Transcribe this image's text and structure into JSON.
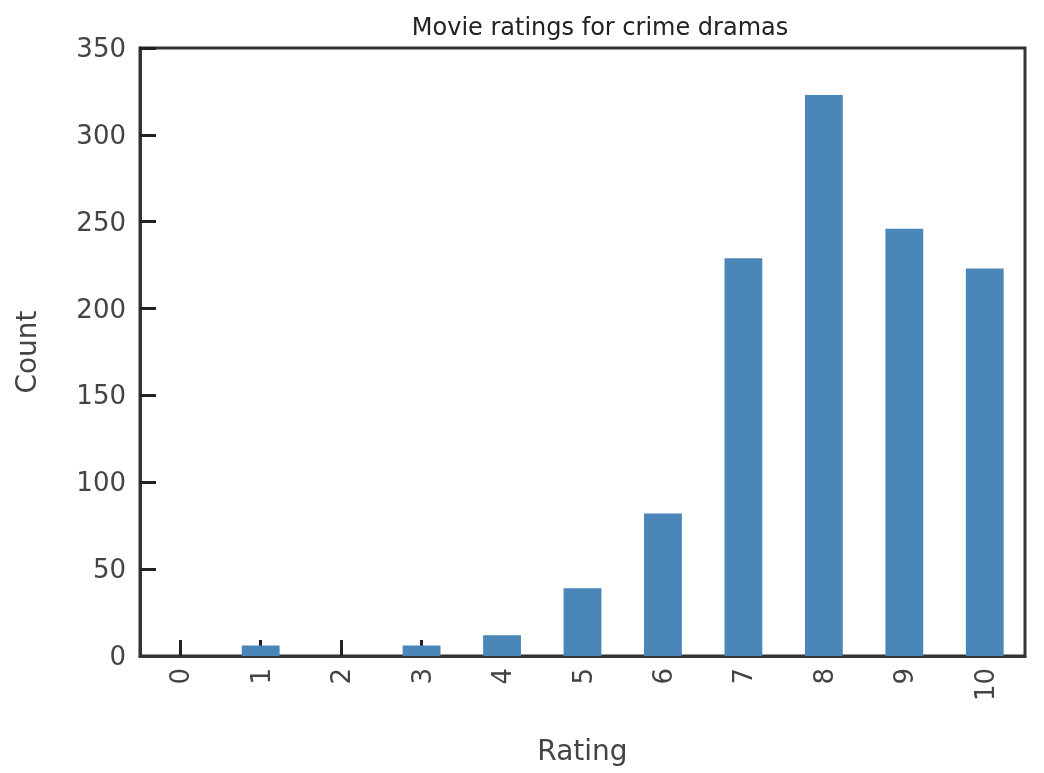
{
  "chart_data": {
    "type": "bar",
    "title": "Movie ratings for crime dramas",
    "xlabel": "Rating",
    "ylabel": "Count",
    "categories": [
      "0",
      "1",
      "2",
      "3",
      "4",
      "5",
      "6",
      "7",
      "8",
      "9",
      "10"
    ],
    "values": [
      0,
      6,
      0,
      6,
      12,
      39,
      82,
      229,
      323,
      246,
      223
    ],
    "color": "#4a86b8",
    "ylim": [
      0,
      350
    ],
    "yticks": [
      0,
      50,
      100,
      150,
      200,
      250,
      300,
      350
    ],
    "grid": false
  }
}
